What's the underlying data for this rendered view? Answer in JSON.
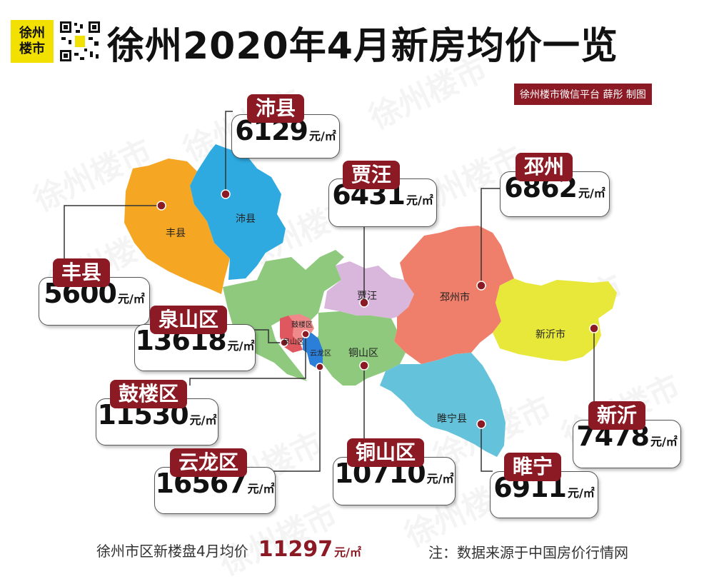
{
  "header": {
    "logo_line1": "徐州",
    "logo_line2": "楼市",
    "title": "徐州2020年4月新房均价一览",
    "credit": "徐州楼市微信平台 薛彤 制图"
  },
  "watermark": "徐州楼市",
  "unit": "元/㎡",
  "regions": [
    {
      "id": "fengxian",
      "tag": "丰县",
      "price": "5600",
      "map_label": "丰县",
      "color": "#f5a623"
    },
    {
      "id": "peixian",
      "tag": "沛县",
      "price": "6129",
      "map_label": "沛县",
      "color": "#2eaae1"
    },
    {
      "id": "jiawang",
      "tag": "贾汪",
      "price": "6431",
      "map_label": "贾汪",
      "color": "#d9b6dc"
    },
    {
      "id": "pizhou",
      "tag": "邳州",
      "price": "6862",
      "map_label": "邳州市",
      "color": "#ef7f6b"
    },
    {
      "id": "xinyi",
      "tag": "新沂",
      "price": "7478",
      "map_label": "新沂市",
      "color": "#e8e83a"
    },
    {
      "id": "suining",
      "tag": "睢宁",
      "price": "6911",
      "map_label": "睢宁县",
      "color": "#64c2da"
    },
    {
      "id": "tongshan",
      "tag": "铜山区",
      "price": "10710",
      "map_label": "铜山区",
      "color": "#8ec97d"
    },
    {
      "id": "quanshan",
      "tag": "泉山区",
      "price": "13618",
      "map_label": "泉山区",
      "color": "#e0585f"
    },
    {
      "id": "gulou",
      "tag": "鼓楼区",
      "price": "11530",
      "map_label": "鼓楼区",
      "color": "#f08a8a"
    },
    {
      "id": "yunlong",
      "tag": "云龙区",
      "price": "16567",
      "map_label": "云龙区",
      "color": "#2b7fd8"
    }
  ],
  "footer": {
    "summary_label": "徐州市区新楼盘4月均价",
    "summary_price": "11297",
    "summary_unit": "元/㎡",
    "note": "注：数据来源于中国房价行情网"
  }
}
